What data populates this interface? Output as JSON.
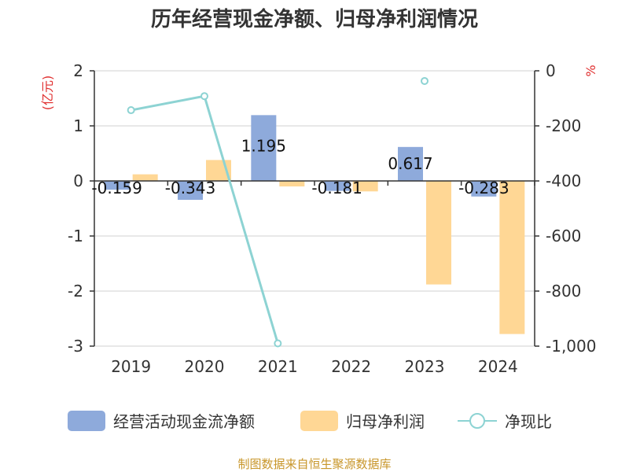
{
  "chart_data": {
    "type": "bar+line",
    "title": "历年经营现金净额、归母净利润情况",
    "categories": [
      "2019",
      "2020",
      "2021",
      "2022",
      "2023",
      "2024"
    ],
    "left_axis": {
      "label": "(亿元)",
      "ylim": [
        -3,
        2
      ],
      "ticks": [
        "2",
        "1",
        "0",
        "-1",
        "-2",
        "-3"
      ]
    },
    "right_axis": {
      "label": "%",
      "ylim": [
        -1000,
        0
      ],
      "ticks": [
        "0",
        "-200",
        "-400",
        "-600",
        "-800",
        "-1,000"
      ]
    },
    "series": [
      {
        "name": "经营活动现金流净额",
        "type": "bar",
        "axis": "left",
        "color": "#8eaadb",
        "values": [
          -0.159,
          -0.343,
          1.195,
          -0.181,
          0.617,
          -0.283
        ],
        "labels": [
          "-0.159",
          "-0.343",
          "1.195",
          "-0.181",
          "0.617",
          "-0.283"
        ]
      },
      {
        "name": "归母净利润",
        "type": "bar",
        "axis": "left",
        "color": "#ffd795",
        "values": [
          0.12,
          0.38,
          -0.1,
          -0.19,
          -1.88,
          -2.78
        ]
      },
      {
        "name": "净现比",
        "type": "line",
        "axis": "right",
        "color": "#8dd3d3",
        "values": [
          -143,
          -92,
          -990,
          null,
          -37,
          null
        ]
      }
    ]
  },
  "source": "制图数据来自恒生聚源数据库"
}
